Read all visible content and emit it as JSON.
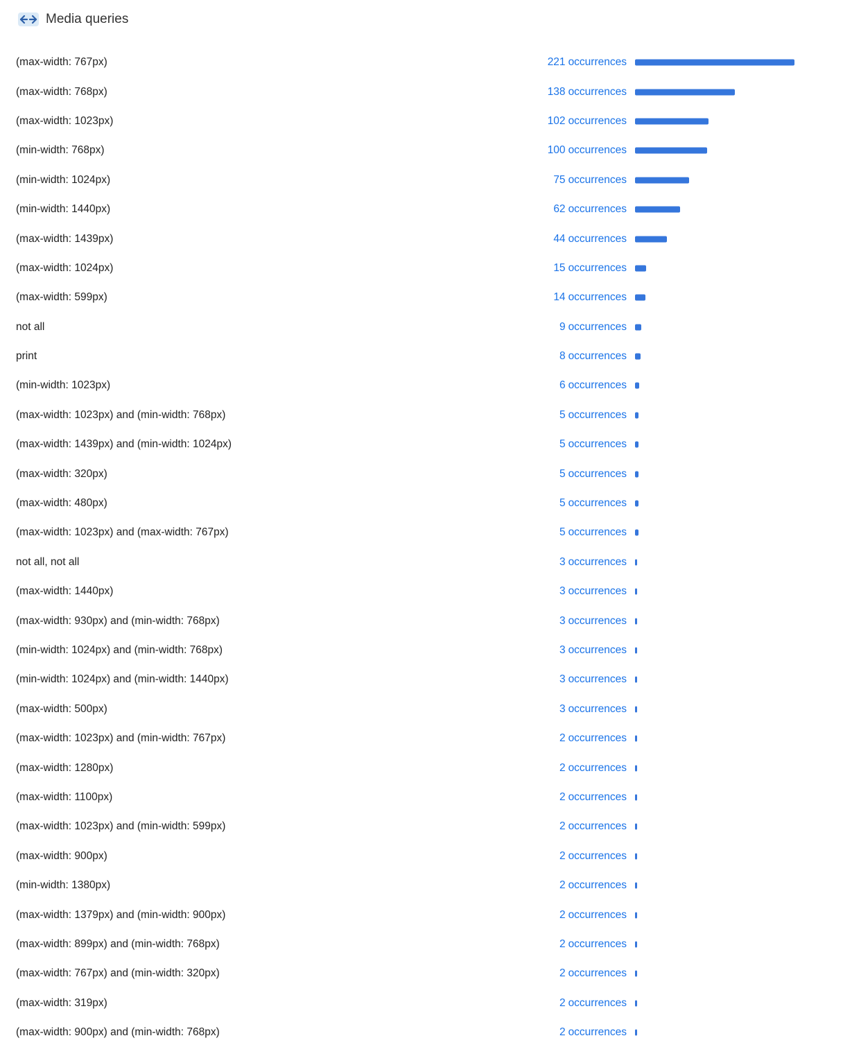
{
  "section": {
    "title": "Media queries",
    "icon": "arrows-horizontal-icon",
    "accent_color": "#3576dc",
    "link_color": "#1a73e8"
  },
  "unit_label": "occurrences",
  "max_value": 221,
  "items": [
    {
      "query": "(max-width: 767px)",
      "count": 221
    },
    {
      "query": "(max-width: 768px)",
      "count": 138
    },
    {
      "query": "(max-width: 1023px)",
      "count": 102
    },
    {
      "query": "(min-width: 768px)",
      "count": 100
    },
    {
      "query": "(min-width: 1024px)",
      "count": 75
    },
    {
      "query": "(min-width: 1440px)",
      "count": 62
    },
    {
      "query": "(max-width: 1439px)",
      "count": 44
    },
    {
      "query": "(max-width: 1024px)",
      "count": 15
    },
    {
      "query": "(max-width: 599px)",
      "count": 14
    },
    {
      "query": "not all",
      "count": 9
    },
    {
      "query": "print",
      "count": 8
    },
    {
      "query": "(min-width: 1023px)",
      "count": 6
    },
    {
      "query": "(max-width: 1023px) and (min-width: 768px)",
      "count": 5
    },
    {
      "query": "(max-width: 1439px) and (min-width: 1024px)",
      "count": 5
    },
    {
      "query": "(max-width: 320px)",
      "count": 5
    },
    {
      "query": "(max-width: 480px)",
      "count": 5
    },
    {
      "query": "(max-width: 1023px) and (max-width: 767px)",
      "count": 5
    },
    {
      "query": "not all, not all",
      "count": 3
    },
    {
      "query": "(max-width: 1440px)",
      "count": 3
    },
    {
      "query": "(max-width: 930px) and (min-width: 768px)",
      "count": 3
    },
    {
      "query": "(min-width: 1024px) and (min-width: 768px)",
      "count": 3
    },
    {
      "query": "(min-width: 1024px) and (min-width: 1440px)",
      "count": 3
    },
    {
      "query": "(max-width: 500px)",
      "count": 3
    },
    {
      "query": "(max-width: 1023px) and (min-width: 767px)",
      "count": 2
    },
    {
      "query": "(max-width: 1280px)",
      "count": 2
    },
    {
      "query": "(max-width: 1100px)",
      "count": 2
    },
    {
      "query": "(max-width: 1023px) and (min-width: 599px)",
      "count": 2
    },
    {
      "query": "(max-width: 900px)",
      "count": 2
    },
    {
      "query": "(min-width: 1380px)",
      "count": 2
    },
    {
      "query": "(max-width: 1379px) and (min-width: 900px)",
      "count": 2
    },
    {
      "query": "(max-width: 899px) and (min-width: 768px)",
      "count": 2
    },
    {
      "query": "(max-width: 767px) and (min-width: 320px)",
      "count": 2
    },
    {
      "query": "(max-width: 319px)",
      "count": 2
    },
    {
      "query": "(max-width: 900px) and (min-width: 768px)",
      "count": 2
    }
  ]
}
